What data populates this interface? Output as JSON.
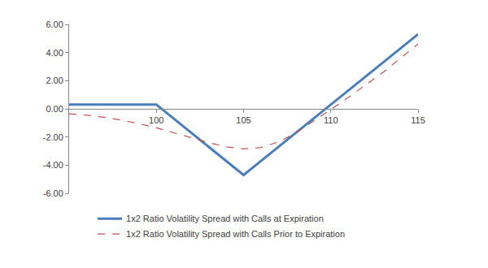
{
  "chart_data": {
    "type": "line",
    "x": [
      95,
      96,
      97,
      98,
      99,
      100,
      101,
      102,
      103,
      104,
      105,
      106,
      107,
      108,
      109,
      110,
      111,
      112,
      113,
      114,
      115
    ],
    "series": [
      {
        "name": "1x2 Ratio Volatility Spread with Calls at Expiration",
        "color": "#4a7ebb",
        "line_style": "solid",
        "values": [
          0.3,
          0.3,
          0.3,
          0.3,
          0.3,
          0.3,
          -0.7,
          -1.7,
          -2.7,
          -3.7,
          -4.7,
          -3.7,
          -2.7,
          -1.7,
          -0.7,
          0.3,
          1.3,
          2.3,
          3.3,
          4.3,
          5.3
        ]
      },
      {
        "name": "1x2 Ratio Volatility Spread with Calls Prior to Expiration",
        "color": "#c0504d",
        "line_style": "dash",
        "values": [
          -0.35,
          -0.45,
          -0.6,
          -0.8,
          -1.05,
          -1.35,
          -1.7,
          -2.05,
          -2.4,
          -2.7,
          -2.85,
          -2.75,
          -2.35,
          -1.7,
          -0.9,
          -0.05,
          0.8,
          1.7,
          2.6,
          3.6,
          4.6
        ]
      }
    ],
    "xlim": [
      95,
      115
    ],
    "xticks": [
      100,
      105,
      110,
      115
    ],
    "ylim": [
      -6,
      6
    ],
    "yticks": [
      {
        "value": -6,
        "label": "-6.00"
      },
      {
        "value": -4,
        "label": "-4.00"
      },
      {
        "value": -2,
        "label": "-2.00"
      },
      {
        "value": 0,
        "label": "0.00"
      },
      {
        "value": 2,
        "label": "2.00"
      },
      {
        "value": 4,
        "label": "4.00"
      },
      {
        "value": 6,
        "label": "6.00"
      }
    ],
    "grid": false,
    "legend": "bottom"
  }
}
